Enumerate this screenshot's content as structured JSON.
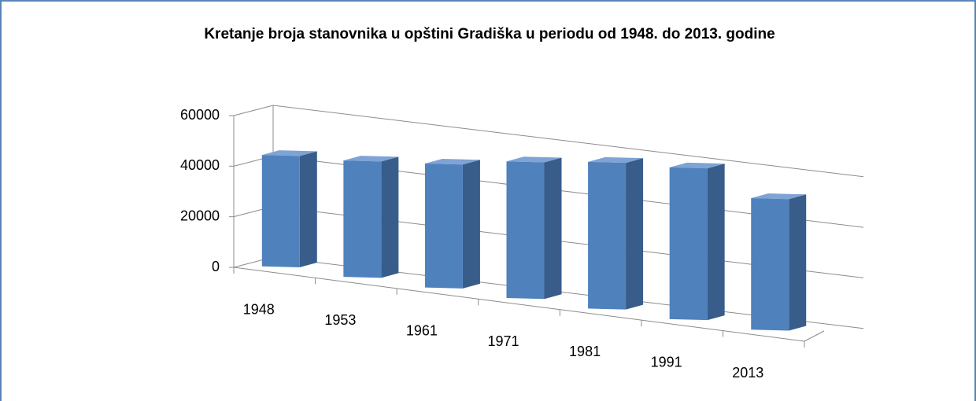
{
  "chart_data": {
    "type": "bar3d",
    "title": "Kretanje broja stanovnika u opštini Gradiška u periodu od 1948. do 2013. godine",
    "categories": [
      "1948",
      "1953",
      "1961",
      "1971",
      "1981",
      "1991",
      "2013"
    ],
    "values": [
      44000,
      46000,
      49000,
      54000,
      58000,
      60000,
      52000
    ],
    "color": "#4f81bd",
    "ylim": [
      0,
      60000
    ],
    "yticks": [
      0,
      20000,
      40000,
      60000
    ],
    "grid": true
  }
}
